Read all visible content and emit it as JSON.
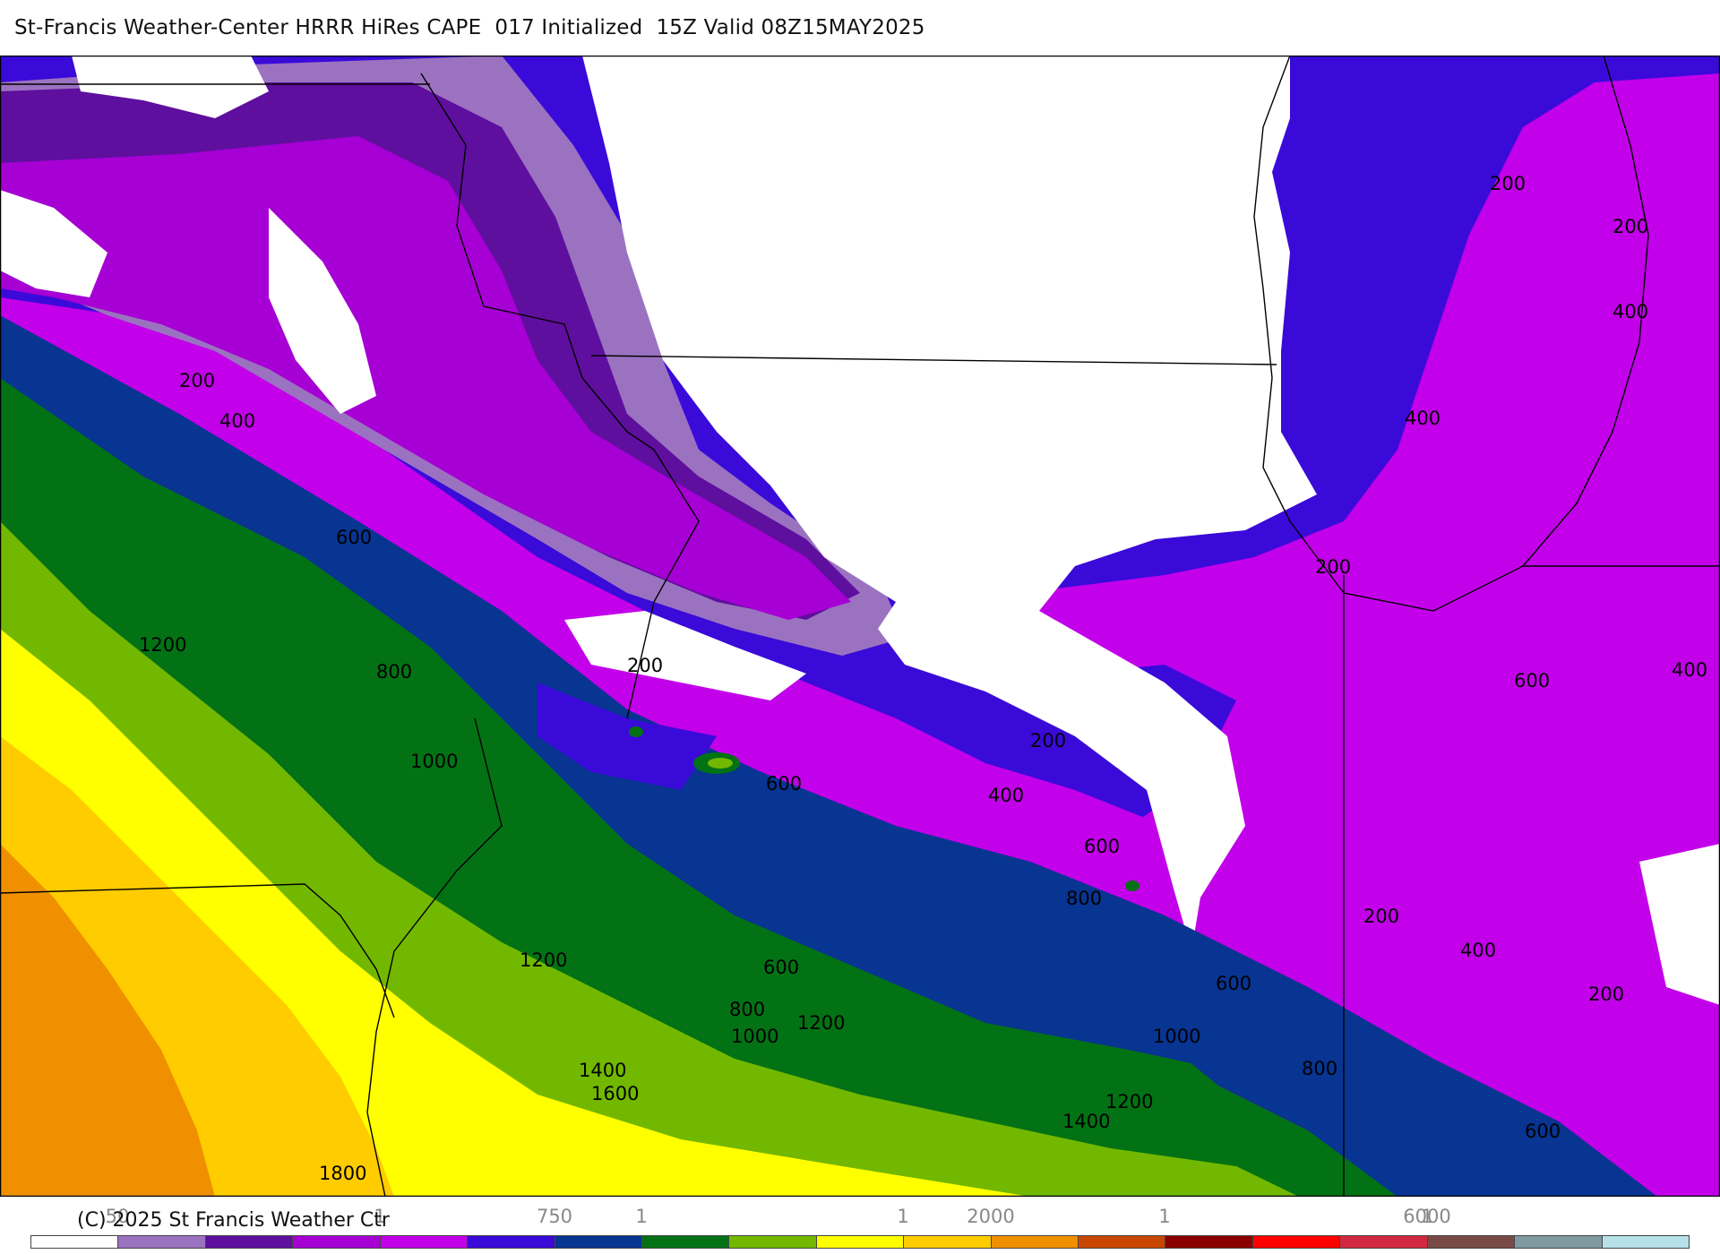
{
  "title": "St-Francis Weather-Center HRRR HiRes CAPE  017 Initialized  15Z Valid 08Z15MAY2025",
  "copyright": "(C) 2025 St Francis Weather Ctr",
  "legend": {
    "colors": [
      "#ffffff",
      "#9b72c0",
      "#5e0f9e",
      "#a600d4",
      "#c300ea",
      "#3a0ad9",
      "#083492",
      "#037214",
      "#72b800",
      "#ffff00",
      "#ffcc00",
      "#f09000",
      "#c84600",
      "#8a0000",
      "#ff0000",
      "#d22840",
      "#7a4a46",
      "#7f9aa0",
      "#b7e1e8"
    ],
    "tick_labels": [
      "50",
      "1",
      "750",
      "1",
      "1",
      "2000",
      "1",
      "6000",
      "1"
    ]
  },
  "contour_labels": [
    "200",
    "400",
    "600",
    "800",
    "1000",
    "1200",
    "1400",
    "1600",
    "1800"
  ]
}
